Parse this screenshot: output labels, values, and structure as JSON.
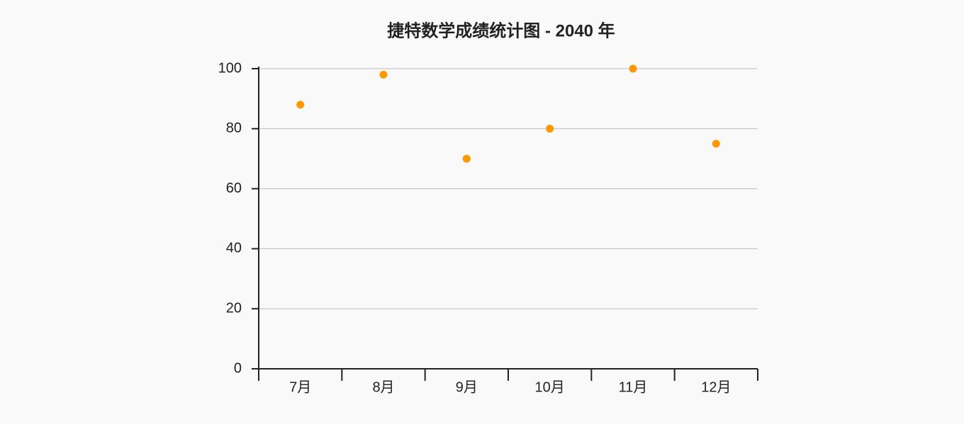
{
  "chart_data": {
    "type": "scatter",
    "title": "捷特数学成绩统计图 - 2040 年",
    "categories": [
      "7月",
      "8月",
      "9月",
      "10月",
      "11月",
      "12月"
    ],
    "values": [
      88,
      98,
      70,
      80,
      100,
      75
    ],
    "color": "#ff9800",
    "ylim": [
      0,
      100
    ],
    "yticks": [
      0,
      20,
      40,
      60,
      80,
      100
    ],
    "grid": true
  }
}
